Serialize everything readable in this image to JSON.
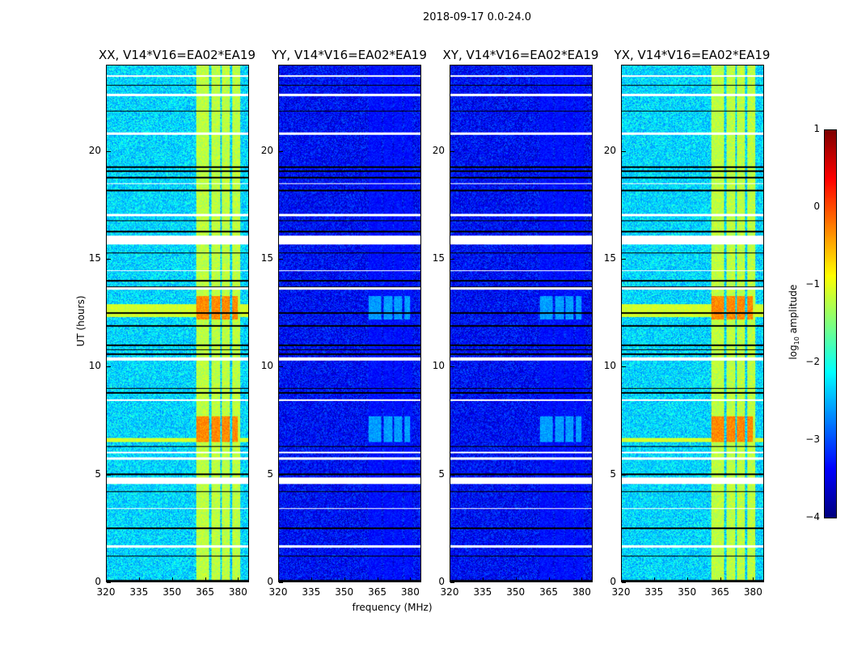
{
  "chart_data": {
    "type": "heatmap",
    "suptitle": "2018-09-17 0.0-24.0",
    "xlabel": "frequency (MHz)",
    "ylabel": "UT (hours)",
    "xlim": [
      320,
      385
    ],
    "ylim": [
      0,
      24
    ],
    "xticks": [
      "320",
      "335",
      "350",
      "365",
      "380"
    ],
    "yticks": [
      "0",
      "5",
      "10",
      "15",
      "20"
    ],
    "colorbar": {
      "label": "log10 amplitude",
      "label_main": "log",
      "label_sub": "10",
      "label_rest": " amplitude",
      "range": [
        -4,
        1
      ],
      "ticks": [
        "1",
        "0",
        "−1",
        "−2",
        "−3",
        "−4"
      ],
      "colormap": "jet"
    },
    "panels": [
      {
        "title": "XX, V14*V16=EA02*EA19",
        "base_log_amp": -2.3,
        "rfi_band_log_amp": -1.2,
        "rfi_burst_log_amp": -0.3
      },
      {
        "title": "YY, V14*V16=EA02*EA19",
        "base_log_amp": -3.35,
        "rfi_band_log_amp": -3.3,
        "rfi_burst_log_amp": -2.6
      },
      {
        "title": "XY, V14*V16=EA02*EA19",
        "base_log_amp": -3.35,
        "rfi_band_log_amp": -3.3,
        "rfi_burst_log_amp": -2.6
      },
      {
        "title": "YX, V14*V16=EA02*EA19",
        "base_log_amp": -2.3,
        "rfi_band_log_amp": -1.2,
        "rfi_burst_log_amp": -0.3
      }
    ],
    "rfi_band_MHz": [
      361,
      381
    ],
    "rfi_burst_hours": [
      [
        12.2,
        13.3
      ],
      [
        6.5,
        7.7
      ]
    ],
    "flagged_hours": [
      [
        15.7,
        16.1
      ],
      [
        4.55,
        4.85
      ],
      [
        10.3,
        10.45
      ],
      [
        22.6,
        22.7
      ],
      [
        20.8,
        20.9
      ],
      [
        17.0,
        17.1
      ],
      [
        14.45,
        14.5
      ],
      [
        13.6,
        13.7
      ],
      [
        8.4,
        8.5
      ],
      [
        6.0,
        6.05
      ],
      [
        5.7,
        5.8
      ],
      [
        3.4,
        3.45
      ],
      [
        1.6,
        1.7
      ],
      [
        18.5,
        18.55
      ],
      [
        23.5,
        23.55
      ]
    ],
    "dropout_hours": [
      23.1,
      21.9,
      19.3,
      19.1,
      18.8,
      18.2,
      16.8,
      16.3,
      15.3,
      14.0,
      13.7,
      12.5,
      11.9,
      11.0,
      10.8,
      10.6,
      9.0,
      8.8,
      6.3,
      5.0,
      4.2,
      2.5,
      1.2,
      0.05
    ]
  }
}
